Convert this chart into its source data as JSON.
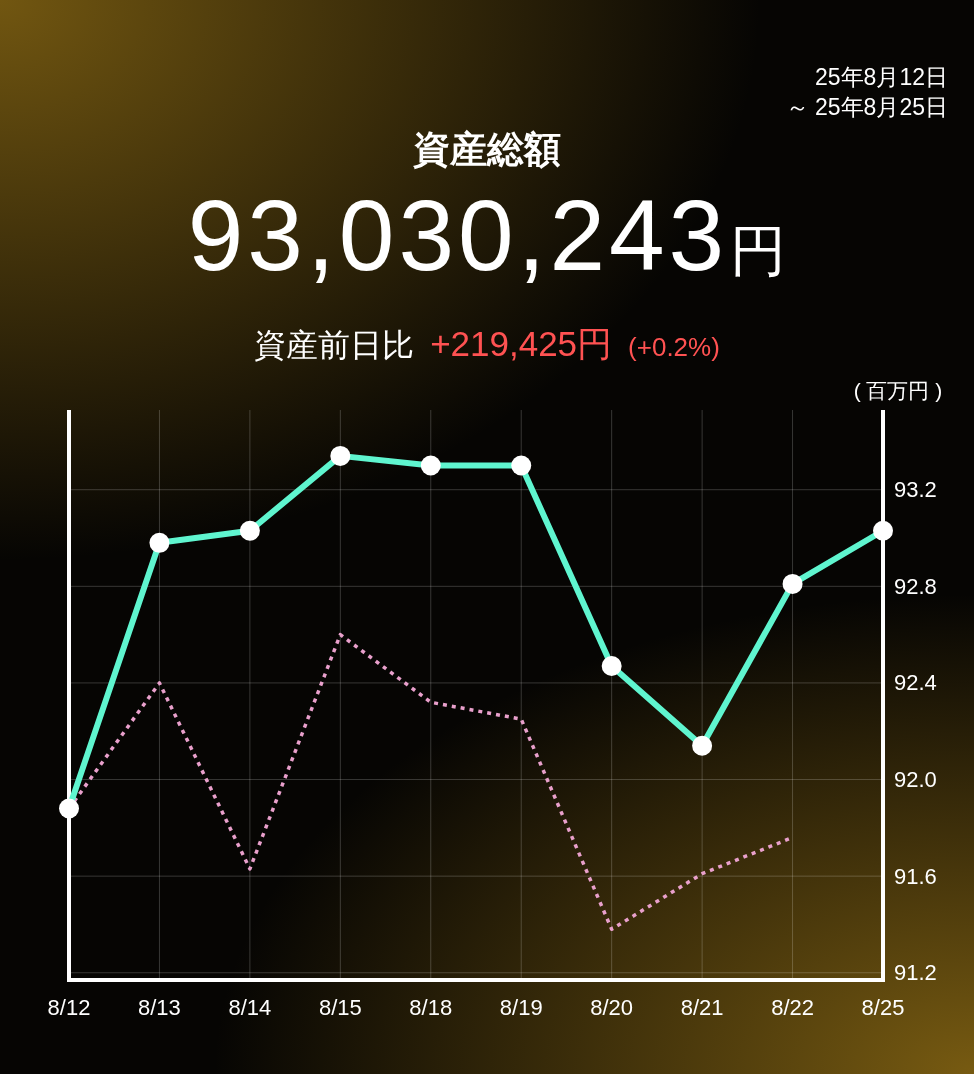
{
  "chart_data": {
    "type": "line",
    "title": "資産総額",
    "subtitle": "93,030,243円",
    "ylabel": "( 百万円 )",
    "annotations": [
      "資産前日比",
      "+219,425円",
      "(+0.2%)",
      "25年8月12日",
      "～ 25年8月25日"
    ],
    "categories": [
      "8/12",
      "8/13",
      "8/14",
      "8/15",
      "8/18",
      "8/19",
      "8/20",
      "8/21",
      "8/22",
      "8/25"
    ],
    "series": [
      {
        "color": "#5ff5cf",
        "marker": "circle",
        "line_style": "solid",
        "values": [
          91.88,
          92.98,
          93.03,
          93.34,
          93.3,
          93.3,
          92.47,
          92.14,
          92.81,
          93.03
        ]
      },
      {
        "color": "#e9a0cc",
        "marker": "none",
        "line_style": "dotted",
        "values": [
          91.88,
          92.4,
          91.63,
          92.6,
          92.32,
          92.25,
          91.38,
          91.61,
          91.76,
          null
        ]
      }
    ],
    "ylim": [
      91.17,
      93.53
    ],
    "yticks": [
      91.2,
      91.6,
      {
        "value": 92,
        "label": "92.0"
      },
      92.4,
      92.8,
      93.2
    ],
    "grid": true
  }
}
